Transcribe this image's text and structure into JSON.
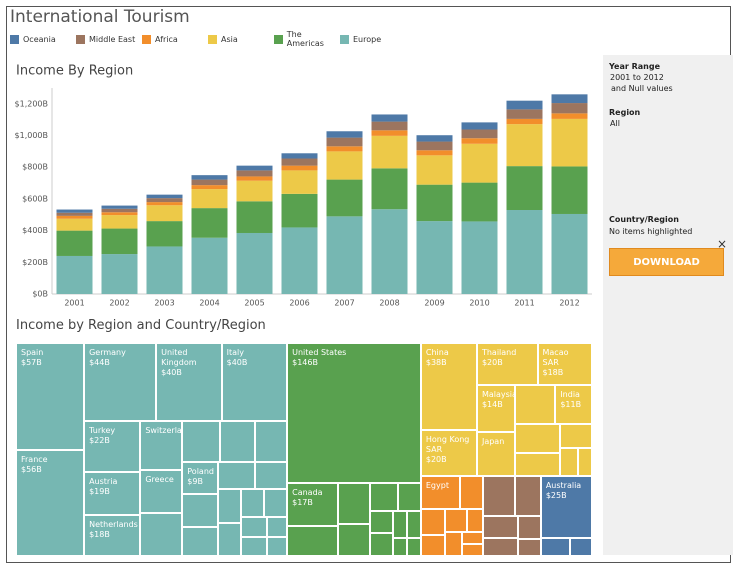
{
  "title": "International Tourism",
  "chart_data": [
    {
      "type": "bar",
      "stacked": true,
      "title": "Income By Region",
      "categories": [
        "2001",
        "2002",
        "2003",
        "2004",
        "2005",
        "2006",
        "2007",
        "2008",
        "2009",
        "2010",
        "2011",
        "2012"
      ],
      "series": [
        {
          "name": "Oceania",
          "color": "#4e79a7",
          "values": [
            20,
            20,
            22,
            28,
            30,
            33,
            40,
            45,
            40,
            45,
            55,
            55
          ]
        },
        {
          "name": "Middle East",
          "color": "#9c755f",
          "values": [
            20,
            22,
            25,
            35,
            38,
            45,
            55,
            55,
            55,
            55,
            60,
            65
          ]
        },
        {
          "name": "Africa",
          "color": "#f28e2b",
          "values": [
            18,
            18,
            20,
            25,
            27,
            30,
            32,
            35,
            32,
            35,
            33,
            35
          ]
        },
        {
          "name": "Asia",
          "color": "#edc948",
          "values": [
            75,
            85,
            100,
            120,
            130,
            148,
            178,
            205,
            185,
            245,
            265,
            300
          ]
        },
        {
          "name": "The Americas",
          "color": "#59a14f",
          "values": [
            160,
            161,
            160,
            187,
            200,
            212,
            232,
            258,
            230,
            245,
            277,
            300
          ]
        },
        {
          "name": "Europe",
          "color": "#76b7b2",
          "values": [
            240,
            252,
            300,
            355,
            385,
            420,
            490,
            535,
            460,
            458,
            530,
            505
          ]
        }
      ],
      "ylim": [
        0,
        1300
      ],
      "yticks": [
        {
          "value": 0,
          "label": "$0B"
        },
        {
          "value": 200,
          "label": "$200B"
        },
        {
          "value": 400,
          "label": "$400B"
        },
        {
          "value": 600,
          "label": "$600B"
        },
        {
          "value": 800,
          "label": "$800B"
        },
        {
          "value": 1000,
          "label": "$1,000B"
        },
        {
          "value": 1200,
          "label": "$1,200B"
        }
      ],
      "grid": false
    },
    {
      "type": "treemap",
      "title": "Income by Region and Country/Region",
      "groups": [
        {
          "name": "Europe",
          "items": [
            {
              "name": "Spain",
              "value": 57,
              "value_label": "$57B"
            },
            {
              "name": "France",
              "value": 56,
              "value_label": "$56B"
            },
            {
              "name": "Germany",
              "value": 44,
              "value_label": "$44B"
            },
            {
              "name": "United Kingdom",
              "value": 40,
              "value_label": "$40B"
            },
            {
              "name": "Italy",
              "value": 40,
              "value_label": "$40B"
            },
            {
              "name": "Turkey",
              "value": 22,
              "value_label": "$22B"
            },
            {
              "name": "Austria",
              "value": 19,
              "value_label": "$19B"
            },
            {
              "name": "Netherlands",
              "value": 18,
              "value_label": "$18B"
            },
            {
              "name": "Switzerland",
              "value": 16
            },
            {
              "name": "Greece",
              "value": 14
            },
            {
              "name": null,
              "value": 14
            },
            {
              "name": null,
              "value": 12
            },
            {
              "name": null,
              "value": 11
            },
            {
              "name": null,
              "value": 10
            },
            {
              "name": "Poland",
              "value": 9,
              "value_label": "$9B"
            },
            {
              "name": null,
              "value": 9
            },
            {
              "name": null,
              "value": 8
            },
            {
              "name": null,
              "value": 8
            },
            {
              "name": null,
              "value": 7
            },
            {
              "name": null,
              "value": 6
            },
            {
              "name": null,
              "value": 6
            },
            {
              "name": null,
              "value": 5
            },
            {
              "name": null,
              "value": 5
            },
            {
              "name": null,
              "value": 4
            },
            {
              "name": null,
              "value": 4
            },
            {
              "name": null,
              "value": 3
            },
            {
              "name": null,
              "value": 3
            }
          ]
        },
        {
          "name": "The Americas",
          "items": [
            {
              "name": "United States",
              "value": 146,
              "value_label": "$146B"
            },
            {
              "name": "Canada",
              "value": 17,
              "value_label": "$17B"
            },
            {
              "name": null,
              "value": 12
            },
            {
              "name": null,
              "value": 10
            },
            {
              "name": null,
              "value": 8
            },
            {
              "name": null,
              "value": 6
            },
            {
              "name": null,
              "value": 5
            },
            {
              "name": null,
              "value": 4
            },
            {
              "name": null,
              "value": 4
            },
            {
              "name": null,
              "value": 3
            },
            {
              "name": null,
              "value": 3
            },
            {
              "name": null,
              "value": 2
            },
            {
              "name": null,
              "value": 2
            }
          ]
        },
        {
          "name": "Asia",
          "items": [
            {
              "name": "China",
              "value": 38,
              "value_label": "$38B"
            },
            {
              "name": "Hong Kong SAR",
              "value": 20,
              "value_label": "$20B"
            },
            {
              "name": "Thailand",
              "value": 20,
              "value_label": "$20B"
            },
            {
              "name": "Macao SAR",
              "value": 18,
              "value_label": "$18B"
            },
            {
              "name": "Malaysia",
              "value": 14,
              "value_label": "$14B"
            },
            {
              "name": "Japan",
              "value": 13
            },
            {
              "name": null,
              "value": 12
            },
            {
              "name": "India",
              "value": 11,
              "value_label": "$11B"
            },
            {
              "name": null,
              "value": 10
            },
            {
              "name": null,
              "value": 8
            },
            {
              "name": null,
              "value": 6
            },
            {
              "name": null,
              "value": 4
            },
            {
              "name": null,
              "value": 3
            }
          ]
        },
        {
          "name": "Africa",
          "items": [
            {
              "name": "Egypt",
              "value": 10
            },
            {
              "name": null,
              "value": 6
            },
            {
              "name": null,
              "value": 5
            },
            {
              "name": null,
              "value": 4
            },
            {
              "name": null,
              "value": 4
            },
            {
              "name": null,
              "value": 3
            },
            {
              "name": null,
              "value": 3
            },
            {
              "name": null,
              "value": 2
            },
            {
              "name": null,
              "value": 2
            }
          ]
        },
        {
          "name": "Middle East",
          "items": [
            {
              "name": null,
              "value": 10
            },
            {
              "name": null,
              "value": 8
            },
            {
              "name": null,
              "value": 6
            },
            {
              "name": null,
              "value": 5
            },
            {
              "name": null,
              "value": 4
            },
            {
              "name": null,
              "value": 3
            }
          ]
        },
        {
          "name": "Oceania",
          "items": [
            {
              "name": "Australia",
              "value": 25,
              "value_label": "$25B"
            },
            {
              "name": null,
              "value": 4
            },
            {
              "name": null,
              "value": 3
            }
          ]
        }
      ]
    }
  ],
  "filters": [
    {
      "label": "Year Range",
      "lines": [
        "2001 to 2012",
        "and Null values"
      ]
    },
    {
      "label": "Region",
      "lines": [
        "All"
      ]
    }
  ],
  "highlight": {
    "label": "Country/Region",
    "text": "No items highlighted"
  },
  "close": "×",
  "button": "DOWNLOAD"
}
